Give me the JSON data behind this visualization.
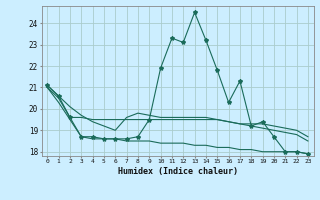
{
  "xlabel": "Humidex (Indice chaleur)",
  "bg_color": "#cceeff",
  "grid_color": "#aacccc",
  "line_color": "#1a6b5a",
  "xlim": [
    -0.5,
    23.5
  ],
  "ylim": [
    17.8,
    24.8
  ],
  "yticks": [
    18,
    19,
    20,
    21,
    22,
    23,
    24
  ],
  "xticks": [
    0,
    1,
    2,
    3,
    4,
    5,
    6,
    7,
    8,
    9,
    10,
    11,
    12,
    13,
    14,
    15,
    16,
    17,
    18,
    19,
    20,
    21,
    22,
    23
  ],
  "line1_x": [
    0,
    1,
    2,
    3,
    4,
    5,
    6,
    7,
    8,
    9,
    10,
    11,
    12,
    13,
    14,
    15,
    16,
    17,
    18,
    19,
    20,
    21,
    22,
    23
  ],
  "line1_y": [
    21.1,
    20.6,
    19.6,
    18.7,
    18.7,
    18.6,
    18.6,
    18.6,
    18.7,
    19.5,
    21.9,
    23.3,
    23.1,
    24.5,
    23.2,
    21.8,
    20.3,
    21.3,
    19.2,
    19.4,
    18.7,
    18.0,
    18.0,
    17.9
  ],
  "line2_x": [
    0,
    1,
    2,
    3,
    4,
    5,
    6,
    7,
    8,
    9,
    10,
    11,
    12,
    13,
    14,
    15,
    16,
    17,
    18,
    19,
    20,
    21,
    22,
    23
  ],
  "line2_y": [
    21.1,
    20.6,
    20.1,
    19.7,
    19.4,
    19.2,
    19.0,
    19.6,
    19.8,
    19.7,
    19.6,
    19.6,
    19.6,
    19.6,
    19.6,
    19.5,
    19.4,
    19.3,
    19.3,
    19.3,
    19.2,
    19.1,
    19.0,
    18.7
  ],
  "line3_x": [
    0,
    1,
    2,
    3,
    4,
    5,
    6,
    7,
    8,
    9,
    10,
    11,
    12,
    13,
    14,
    15,
    16,
    17,
    18,
    19,
    20,
    21,
    22,
    23
  ],
  "line3_y": [
    21.0,
    20.5,
    19.6,
    19.6,
    19.5,
    19.5,
    19.5,
    19.5,
    19.5,
    19.5,
    19.5,
    19.5,
    19.5,
    19.5,
    19.5,
    19.5,
    19.4,
    19.3,
    19.2,
    19.1,
    19.0,
    18.9,
    18.8,
    18.5
  ],
  "line4_x": [
    0,
    1,
    2,
    3,
    4,
    5,
    6,
    7,
    8,
    9,
    10,
    11,
    12,
    13,
    14,
    15,
    16,
    17,
    18,
    19,
    20,
    21,
    22,
    23
  ],
  "line4_y": [
    21.0,
    20.3,
    19.5,
    18.7,
    18.6,
    18.6,
    18.6,
    18.5,
    18.5,
    18.5,
    18.4,
    18.4,
    18.4,
    18.3,
    18.3,
    18.2,
    18.2,
    18.1,
    18.1,
    18.0,
    18.0,
    18.0,
    18.0,
    17.9
  ]
}
